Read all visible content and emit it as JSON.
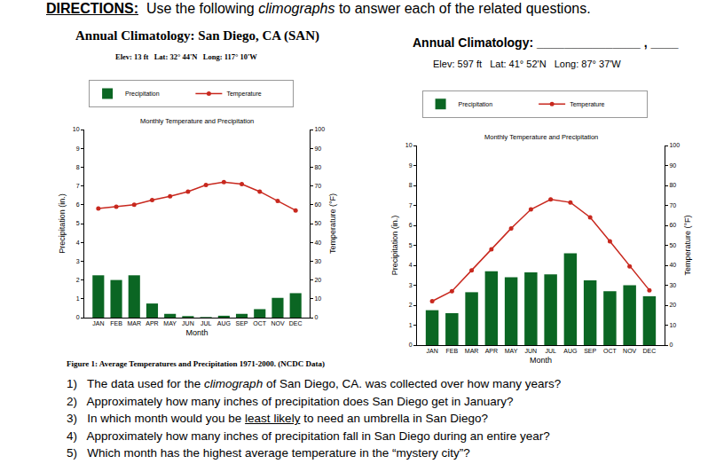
{
  "header": [
    {
      "text": "DIRECTIONS:",
      "bold": true,
      "underline": true
    },
    {
      "text": "  Use the following "
    },
    {
      "text": "climographs",
      "italic": true
    },
    {
      "text": " to answer each of the related questions."
    }
  ],
  "chart_data": [
    {
      "type": "bar",
      "title": "Annual Climatology: San Diego, CA (SAN)",
      "subtitle": "Elev: 13 ft   Lat: 32° 44'N   Long: 117° 10'W",
      "annotations": [
        "Monthly Temperature and Precipitation"
      ],
      "categories": [
        "JAN",
        "FEB",
        "MAR",
        "APR",
        "MAY",
        "JUN",
        "JUL",
        "AUG",
        "SEP",
        "OCT",
        "NOV",
        "DEC"
      ],
      "xlabel": "Month",
      "ylabel": "Precipitation (in.)",
      "y2label": "Temperature (°F)",
      "ylim": [
        0,
        10
      ],
      "yticks": [
        0,
        1,
        2,
        3,
        4,
        5,
        6,
        7,
        8,
        9,
        10
      ],
      "y2lim": [
        0,
        100
      ],
      "y2ticks": [
        0,
        10,
        20,
        30,
        40,
        50,
        60,
        70,
        80,
        90,
        100
      ],
      "grid": false,
      "legend": "top",
      "series": [
        {
          "name": "Precipitation",
          "type": "bar",
          "color": "#0b6623",
          "values": [
            2.25,
            2.0,
            2.25,
            0.75,
            0.2,
            0.08,
            0.03,
            0.1,
            0.2,
            0.45,
            1.05,
            1.3
          ]
        },
        {
          "name": "Temperature",
          "type": "line",
          "axis": "y2",
          "color": "#c8281e",
          "marker": "circle",
          "values": [
            58,
            59,
            60,
            62.5,
            64.5,
            67,
            70.5,
            72,
            71,
            67,
            62,
            57
          ]
        }
      ]
    },
    {
      "type": "bar",
      "title": "Annual Climatology: _______________ , ____",
      "subtitle": "Elev: 597 ft   Lat: 41° 52'N   Long: 87° 37'W",
      "annotations": [
        "Monthly Temperature and Precipitation"
      ],
      "categories": [
        "JAN",
        "FEB",
        "MAR",
        "APR",
        "MAY",
        "JUN",
        "JUL",
        "AUG",
        "SEP",
        "OCT",
        "NOV",
        "DEC"
      ],
      "xlabel": "Month",
      "ylabel": "Precipitation (in.)",
      "y2label": "Temperature (°F)",
      "ylim": [
        0,
        10
      ],
      "yticks": [
        0,
        1,
        2,
        3,
        4,
        5,
        6,
        7,
        8,
        9,
        10
      ],
      "y2lim": [
        0,
        100
      ],
      "y2ticks": [
        0,
        10,
        20,
        30,
        40,
        50,
        60,
        70,
        80,
        90,
        100
      ],
      "grid": false,
      "legend": "top",
      "series": [
        {
          "name": "Precipitation",
          "type": "bar",
          "color": "#0b6623",
          "values": [
            1.75,
            1.6,
            2.65,
            3.7,
            3.4,
            3.65,
            3.55,
            4.6,
            3.25,
            2.7,
            3.0,
            2.45
          ]
        },
        {
          "name": "Temperature",
          "type": "line",
          "axis": "y2",
          "color": "#c8281e",
          "marker": "circle",
          "values": [
            22,
            27,
            37.5,
            48,
            58.5,
            68,
            73,
            71.5,
            64,
            52,
            39.5,
            27.5
          ]
        }
      ]
    }
  ],
  "caption": "Figure 1: Average Temperatures and Precipitation 1971-2000. (NCDC Data)",
  "questions": [
    [
      {
        "text": "1)   The data used for the "
      },
      {
        "text": "climograph",
        "italic": true
      },
      {
        "text": " of San Diego, CA. was collected over how many years?"
      }
    ],
    [
      {
        "text": "2)   Approximately how many inches of precipitation does San Diego get in January?"
      }
    ],
    [
      {
        "text": "3)   In which month would you be "
      },
      {
        "text": "least likely",
        "underline": true
      },
      {
        "text": " to need an umbrella in San Diego?"
      }
    ],
    [
      {
        "text": "4)   Approximately how many inches of precipitation fall in San Diego during an entire year?"
      }
    ],
    [
      {
        "text": "5)   Which month has the highest average temperature in the “mystery city”?"
      }
    ]
  ]
}
